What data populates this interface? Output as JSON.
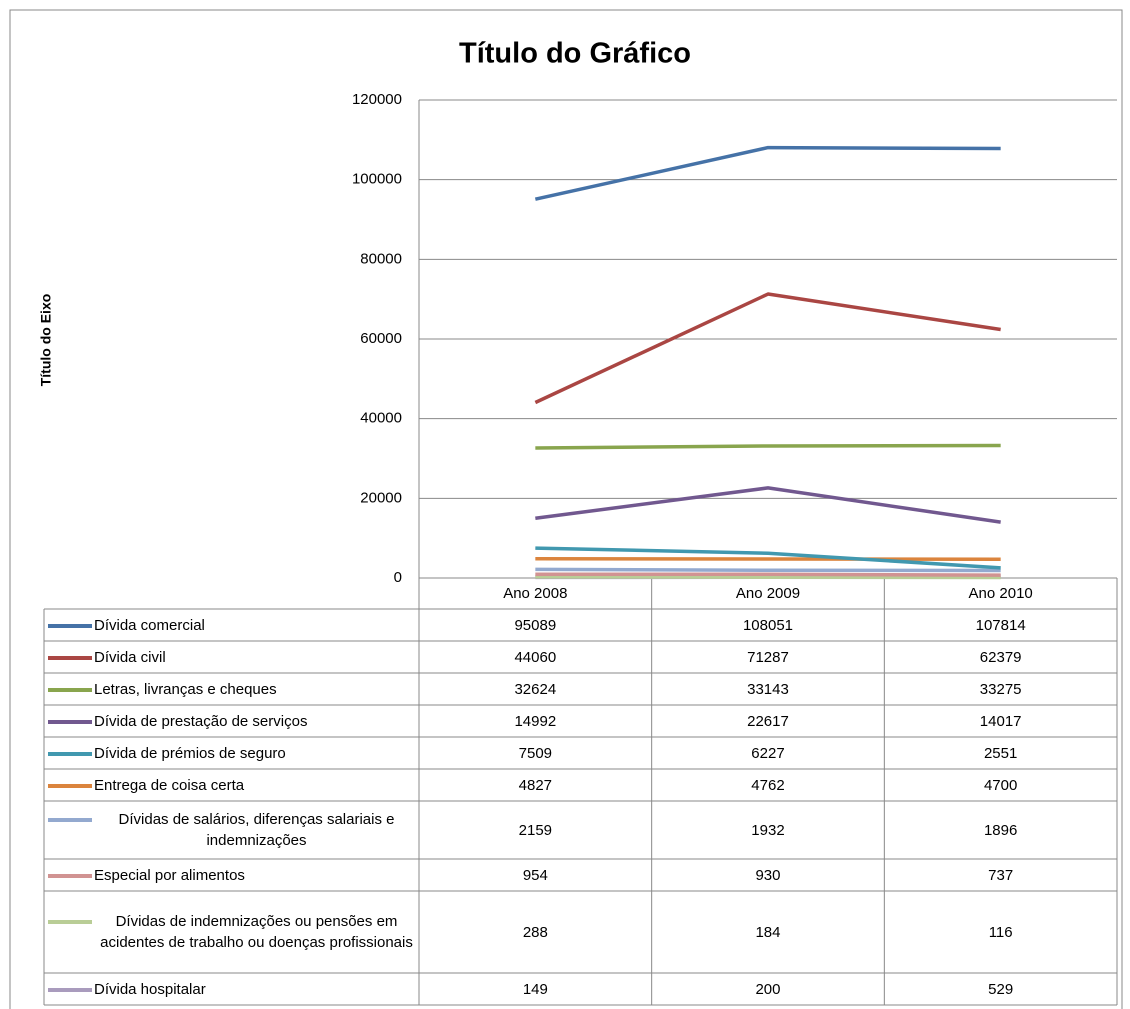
{
  "chart_data": {
    "type": "line",
    "title": "Título do Gráfico",
    "y_axis_title": "Título do Eixo",
    "categories": [
      "Ano 2008",
      "Ano 2009",
      "Ano 2010"
    ],
    "ylim": [
      0,
      120000
    ],
    "yticks": [
      0,
      20000,
      40000,
      60000,
      80000,
      100000,
      120000
    ],
    "grid": true,
    "series": [
      {
        "name": "Dívida comercial",
        "color": "#4572a7",
        "values": [
          95089,
          108051,
          107814
        ]
      },
      {
        "name": "Dívida civil",
        "color": "#aa4643",
        "values": [
          44060,
          71287,
          62379
        ]
      },
      {
        "name": "Letras, livranças e cheques",
        "color": "#89a54e",
        "values": [
          32624,
          33143,
          33275
        ]
      },
      {
        "name": "Dívida de prestação de serviços",
        "color": "#71588f",
        "values": [
          14992,
          22617,
          14017
        ]
      },
      {
        "name": "Dívida de prémios de seguro",
        "color": "#4198af",
        "values": [
          7509,
          6227,
          2551
        ]
      },
      {
        "name": "Entrega de coisa certa",
        "color": "#db843d",
        "values": [
          4827,
          4762,
          4700
        ]
      },
      {
        "name": "Dívidas de salários, diferenças salariais e indemnizações",
        "color": "#93a9cf",
        "values": [
          2159,
          1932,
          1896
        ]
      },
      {
        "name": "Especial por alimentos",
        "color": "#d19392",
        "values": [
          954,
          930,
          737
        ]
      },
      {
        "name": "Dívidas de indemnizações ou pensões em acidentes de trabalho ou doenças profissionais",
        "color": "#b9cd96",
        "values": [
          288,
          184,
          116
        ]
      },
      {
        "name": "Dívida hospitalar",
        "color": "#a99bbd",
        "values": [
          149,
          200,
          529
        ]
      }
    ]
  }
}
